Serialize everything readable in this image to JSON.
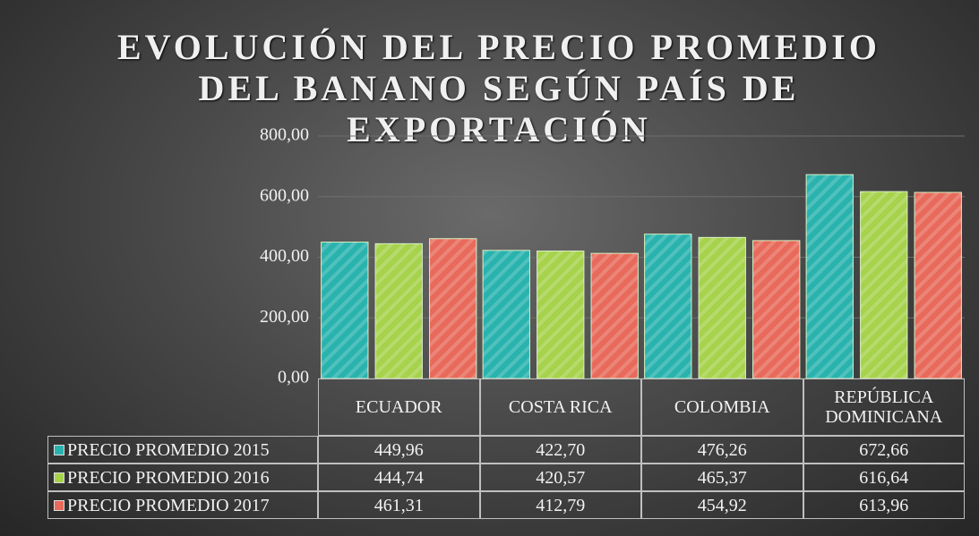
{
  "chart_data": {
    "type": "bar",
    "title": "EVOLUCIÓN DEL PRECIO PROMEDIO DEL BANANO SEGÚN PAÍS DE EXPORTACIÓN",
    "categories": [
      "ECUADOR",
      "COSTA RICA",
      "COLOMBIA",
      "REPÚBLICA DOMINICANA"
    ],
    "series": [
      {
        "name": "PRECIO PROMEDIO 2015",
        "color": "#2ab3ae",
        "values": [
          449.96,
          422.7,
          476.26,
          672.66
        ],
        "value_labels": [
          "449,96",
          "422,70",
          "476,26",
          "672,66"
        ]
      },
      {
        "name": "PRECIO PROMEDIO 2016",
        "color": "#a6d24c",
        "values": [
          444.74,
          420.57,
          465.37,
          616.64
        ],
        "value_labels": [
          "444,74",
          "420,57",
          "465,37",
          "616,64"
        ]
      },
      {
        "name": "PRECIO PROMEDIO 2017",
        "color": "#e86a5b",
        "values": [
          461.31,
          412.79,
          454.92,
          613.96
        ],
        "value_labels": [
          "461,31",
          "412,79",
          "454,92",
          "613,96"
        ]
      }
    ],
    "ylim": [
      0,
      800
    ],
    "yticks": [
      {
        "value": 0,
        "label": "0,00"
      },
      {
        "value": 200,
        "label": "200,00"
      },
      {
        "value": 400,
        "label": "400,00"
      },
      {
        "value": 600,
        "label": "600,00"
      },
      {
        "value": 800,
        "label": "800,00"
      }
    ],
    "grid": true
  }
}
